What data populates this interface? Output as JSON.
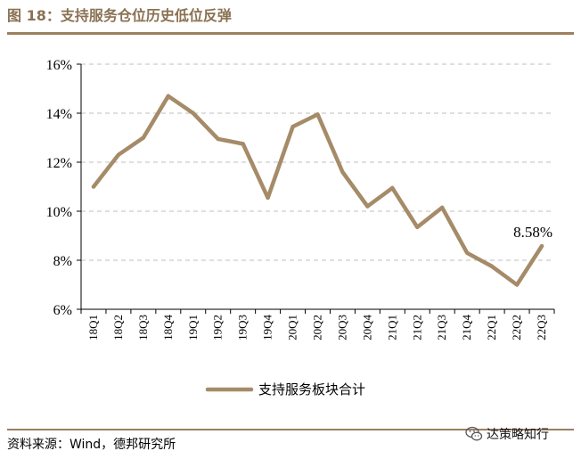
{
  "header": {
    "title": "图 18：支持服务仓位历史低位反弹"
  },
  "footer": {
    "source": "资料来源：Wind，德邦研究所",
    "watermark": "达策略知行"
  },
  "colors": {
    "line": "#a58b68",
    "accent": "#9c7f5e",
    "title": "#8a7152",
    "grid": "#bfbfbf"
  },
  "chart_data": {
    "type": "line",
    "title": "",
    "xlabel": "",
    "ylabel": "",
    "categories": [
      "18Q1",
      "18Q2",
      "18Q3",
      "18Q4",
      "19Q1",
      "19Q2",
      "19Q3",
      "19Q4",
      "20Q1",
      "20Q2",
      "20Q3",
      "20Q4",
      "21Q1",
      "21Q2",
      "21Q3",
      "21Q4",
      "22Q1",
      "22Q2",
      "22Q3"
    ],
    "series": [
      {
        "name": "支持服务板块合计",
        "values": [
          11.0,
          12.3,
          13.0,
          14.7,
          14.0,
          12.95,
          12.75,
          10.55,
          13.45,
          13.95,
          11.6,
          10.2,
          10.95,
          9.35,
          10.15,
          8.3,
          7.75,
          7.0,
          8.58
        ]
      }
    ],
    "ylim": [
      6,
      16
    ],
    "yticks": [
      "6%",
      "8%",
      "10%",
      "12%",
      "14%",
      "16%"
    ],
    "ytick_values": [
      6,
      8,
      10,
      12,
      14,
      16
    ],
    "grid": true,
    "legend_position": "bottom",
    "annotation": {
      "text": "8.58%",
      "category": "22Q3"
    }
  }
}
